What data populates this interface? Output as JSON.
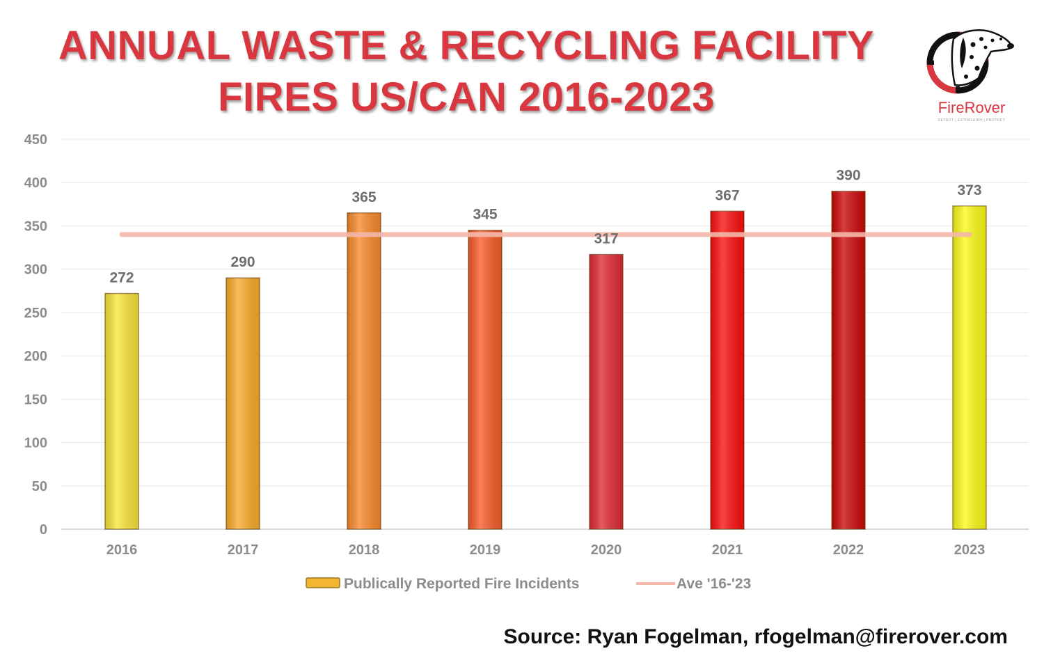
{
  "title": {
    "line1": "ANNUAL WASTE & RECYCLING FACILITY",
    "line2": "FIRES US/CAN 2016-2023"
  },
  "logo": {
    "name": "FireRover",
    "tagline": "DETECT | EXTINGUISH | PROTECT",
    "icon": "dalmatian-crosshair-icon"
  },
  "source": "Source: Ryan Fogelman, rfogelman@firerover.com",
  "chart_data": {
    "type": "bar",
    "categories": [
      "2016",
      "2017",
      "2018",
      "2019",
      "2020",
      "2021",
      "2022",
      "2023"
    ],
    "series": [
      {
        "name": "Publically Reported Fire Incidents",
        "type": "bar",
        "values": [
          272,
          290,
          365,
          345,
          317,
          367,
          390,
          373
        ],
        "colors": [
          "#f9e53b",
          "#f9ab2c",
          "#f98a2c",
          "#f75d2a",
          "#e02b34",
          "#fb0f0f",
          "#cc0a0a",
          "#fbfb1a"
        ],
        "data_labels": [
          "272",
          "290",
          "365",
          "345",
          "317",
          "367",
          "390",
          "373"
        ]
      },
      {
        "name": "Ave '16-'23",
        "type": "line",
        "values": [
          340,
          340,
          340,
          340,
          340,
          340,
          340,
          340
        ],
        "color": "#f4b7a8"
      }
    ],
    "ylim": [
      0,
      450
    ],
    "yticks": [
      0,
      50,
      100,
      150,
      200,
      250,
      300,
      350,
      400,
      450
    ],
    "grid": true,
    "legend_position": "bottom",
    "legend_swatch_color": "#f2b632"
  }
}
